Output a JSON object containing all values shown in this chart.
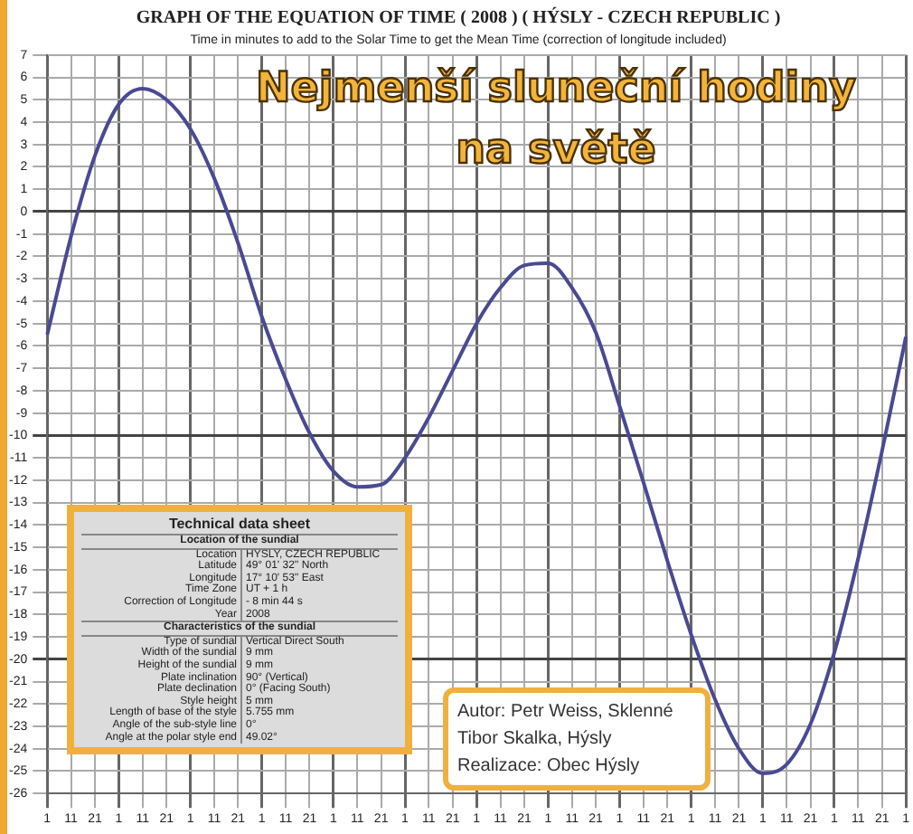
{
  "chart_data": {
    "type": "line",
    "title": "GRAPH OF THE EQUATION OF TIME ( 2008 ) ( HÝSLY - CZECH REPUBLIC )",
    "subtitle": "Time in minutes to add to the Solar Time to get the Mean Time (correction of longitude included)",
    "categories": [
      "1",
      "11",
      "21",
      "1",
      "11",
      "21",
      "1",
      "11",
      "21",
      "1",
      "11",
      "21",
      "1",
      "11",
      "21",
      "1",
      "11",
      "21",
      "1",
      "11",
      "21",
      "1",
      "11",
      "21",
      "1",
      "11",
      "21",
      "1",
      "11",
      "21",
      "1",
      "11",
      "21",
      "1",
      "11",
      "21",
      "1"
    ],
    "series": [
      {
        "color": "#4a4a92",
        "values": [
          -5.5,
          -1.1,
          2.5,
          4.8,
          5.5,
          5.0,
          3.7,
          1.5,
          -1.4,
          -4.7,
          -7.5,
          -9.9,
          -11.6,
          -12.3,
          -12.2,
          -11.0,
          -9.2,
          -7.1,
          -5.0,
          -3.4,
          -2.4,
          -2.3,
          -3.4,
          -5.4,
          -8.7,
          -12.1,
          -15.6,
          -18.9,
          -21.8,
          -24.0,
          -25.1,
          -24.7,
          -22.9,
          -19.7,
          -15.5,
          -10.7,
          -5.6
        ]
      }
    ],
    "ylim": [
      -26,
      7
    ],
    "yticks": [
      7,
      6,
      5,
      4,
      3,
      2,
      1,
      0,
      -1,
      -2,
      -3,
      -4,
      -5,
      -6,
      -7,
      -8,
      -9,
      -10,
      -11,
      -12,
      -13,
      -14,
      -15,
      -16,
      -17,
      -18,
      -19,
      -20,
      -21,
      -22,
      -23,
      -24,
      -25,
      -26
    ],
    "grid": true,
    "legend": false,
    "marker": "none",
    "line_style": "solid",
    "annotations": [
      "Nejmenší sluneční hodiny",
      "na světě",
      "Technical data sheet",
      "Location of the sundial",
      "Location",
      "HYSLY, CZECH REPUBLIC",
      "Latitude",
      "49° 01' 32'' North",
      "Longitude",
      "17° 10' 53'' East",
      "Time Zone",
      "UT + 1 h",
      "Correction of  Longitude",
      "- 8 min 44 s",
      "Year",
      "2008",
      "Characteristics of the sundial",
      "Type of sundial",
      "Vertical Direct South",
      "Width of the sundial",
      "9 mm",
      "Height of the sundial",
      "9 mm",
      "Plate inclination",
      "90° (Vertical)",
      "Plate declination",
      "0° (Facing South)",
      "Style height",
      "5 mm",
      "Length of base of the style",
      "5.755 mm",
      "Angle of the sub-style line",
      "0°",
      "Angle at the polar style end",
      "49.02°",
      "Autor: Petr Weiss, Sklenné",
      "Tibor Skalka, Hýsly",
      "Realizace: Obec Hýsly"
    ]
  }
}
